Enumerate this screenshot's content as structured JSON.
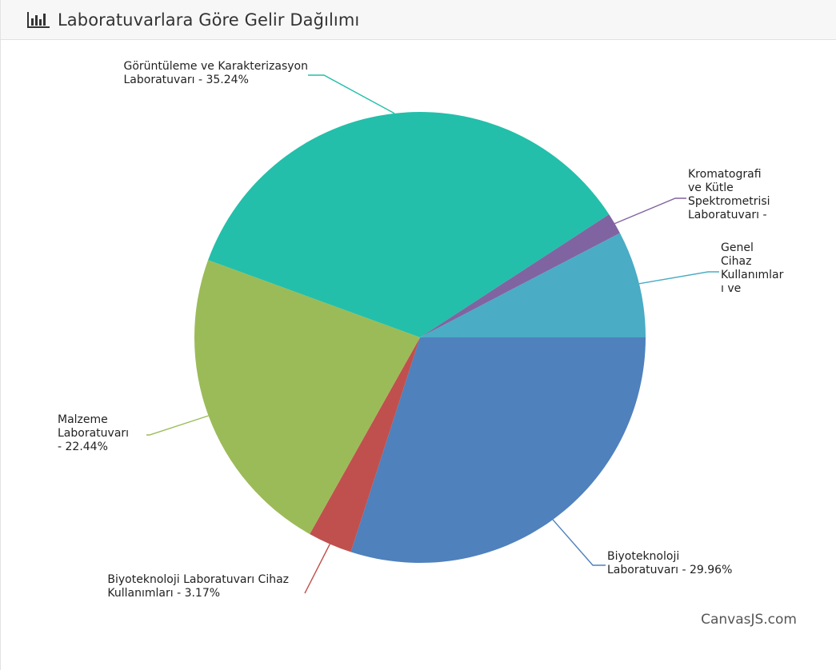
{
  "card": {
    "title": "Laboratuvarlara Göre Gelir Dağılımı",
    "title_icon": "bar-chart-icon"
  },
  "chart_data": {
    "type": "pie",
    "title": "",
    "start_angle_deg": 0,
    "slices": [
      {
        "name": "Biyoteknoloji Laboratuvarı",
        "percent": 29.96,
        "color": "#4f81bc",
        "label_lines": [
          "Biyoteknoloji",
          "Laboratuvarı - 29.96%"
        ]
      },
      {
        "name": "Biyoteknoloji Laboratuvarı Cihaz Kullanımları",
        "percent": 3.17,
        "color": "#c0504e",
        "label_lines": [
          "Biyoteknoloji Laboratuvarı Cihaz",
          "Kullanımları - 3.17%"
        ]
      },
      {
        "name": "Malzeme Laboratuvarı",
        "percent": 22.44,
        "color": "#9bbb58",
        "label_lines": [
          "Malzeme",
          "Laboratuvarı",
          "- 22.44%"
        ]
      },
      {
        "name": "Görüntüleme ve Karakterizasyon Laboratuvarı",
        "percent": 35.24,
        "color": "#23bfaa",
        "label_lines": [
          "Görüntüleme ve Karakterizasyon",
          "Laboratuvarı - 35.24%"
        ]
      },
      {
        "name": "Kromatografi ve Kütle Spektrometrisi Laboratuvarı",
        "percent": 1.53,
        "color": "#8064a1",
        "label_lines": [
          "Kromatografi",
          "ve Kütle",
          "Spektrometrisi",
          "Laboratuvarı -"
        ]
      },
      {
        "name": "Genel Cihaz Kullanımları ve",
        "percent": 7.66,
        "color": "#4aacc5",
        "label_lines": [
          "Genel",
          "Cihaz",
          "Kullanımlar",
          "ı ve"
        ]
      }
    ],
    "legend": "none"
  },
  "credit": "CanvasJS.com"
}
